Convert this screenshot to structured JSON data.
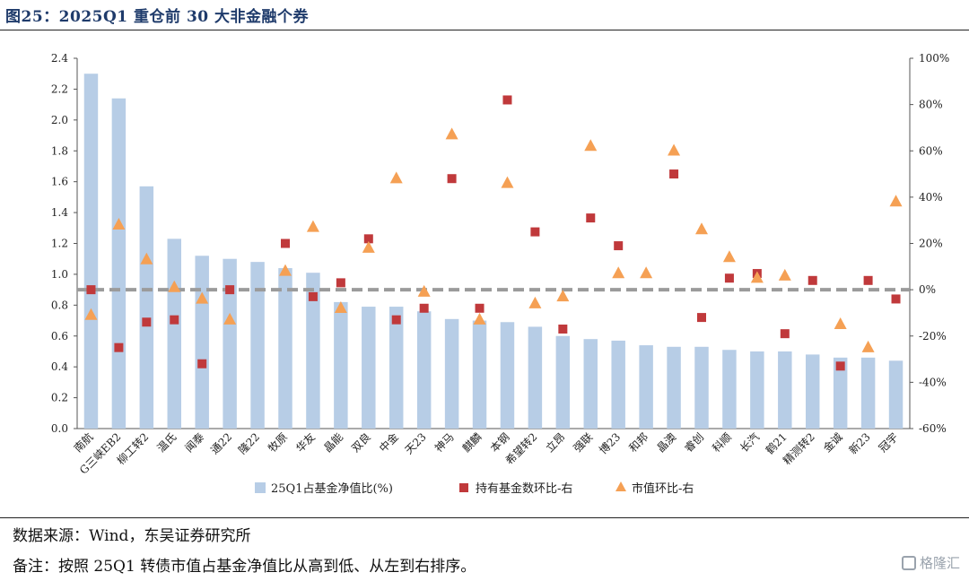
{
  "figure": {
    "title": "图25：2025Q1 重仓前 30 大非金融个券",
    "source": "数据来源：Wind，东吴证券研究所",
    "note": "备注：按照 25Q1 转债市值占基金净值比从高到低、从左到右排序。",
    "watermark": "格隆汇"
  },
  "chart_data": {
    "type": "bar",
    "categories": [
      "南航",
      "G三峡EB2",
      "柳工转2",
      "温氏",
      "闻泰",
      "通22",
      "隆22",
      "牧原",
      "华友",
      "晶能",
      "双良",
      "中金",
      "天23",
      "神马",
      "麒麟",
      "本钢",
      "希望转2",
      "立昂",
      "强联",
      "博23",
      "和邦",
      "晶澳",
      "睿创",
      "科顺",
      "长汽",
      "鹤21",
      "精测转2",
      "金诚",
      "新23",
      "冠宇"
    ],
    "series": [
      {
        "name": "25Q1占基金净值比(%)",
        "kind": "bar",
        "axis": "left",
        "color": "#b7cde6",
        "values": [
          2.3,
          2.14,
          1.57,
          1.23,
          1.12,
          1.1,
          1.08,
          1.04,
          1.01,
          0.82,
          0.79,
          0.79,
          0.76,
          0.71,
          0.7,
          0.69,
          0.66,
          0.6,
          0.58,
          0.57,
          0.54,
          0.53,
          0.53,
          0.51,
          0.5,
          0.5,
          0.48,
          0.46,
          0.46,
          0.44
        ]
      },
      {
        "name": "持有基金数环比-右",
        "kind": "square",
        "axis": "right",
        "color": "#c0393b",
        "values": [
          0,
          -25,
          -14,
          -13,
          -32,
          0,
          null,
          20,
          -3,
          3,
          22,
          -13,
          -8,
          48,
          -8,
          82,
          25,
          -17,
          31,
          19,
          null,
          50,
          -12,
          5,
          7,
          -19,
          4,
          -33,
          4,
          -4
        ]
      },
      {
        "name": "市值环比-右",
        "kind": "triangle",
        "axis": "right",
        "color": "#f5a054",
        "values": [
          -11,
          28,
          13,
          1,
          -4,
          -13,
          null,
          8,
          27,
          -8,
          18,
          48,
          -1,
          67,
          -13,
          46,
          -6,
          -3,
          62,
          7,
          7,
          60,
          26,
          14,
          5,
          6,
          null,
          -15,
          -25,
          38
        ]
      }
    ],
    "y_left": {
      "min": 0,
      "max": 2.4,
      "ticks": [
        "0.0",
        "0.2",
        "0.4",
        "0.6",
        "0.8",
        "1.0",
        "1.2",
        "1.4",
        "1.6",
        "1.8",
        "2.0",
        "2.2",
        "2.4"
      ]
    },
    "y_right": {
      "min": -60,
      "max": 100,
      "ticks": [
        "-60%",
        "-40%",
        "-20%",
        "0%",
        "20%",
        "40%",
        "60%",
        "80%",
        "100%"
      ]
    },
    "reference_line": {
      "axis": "right",
      "value": 0,
      "style": "dashed",
      "color": "#9b9b9b"
    },
    "legend_position": "bottom",
    "grid": false
  }
}
